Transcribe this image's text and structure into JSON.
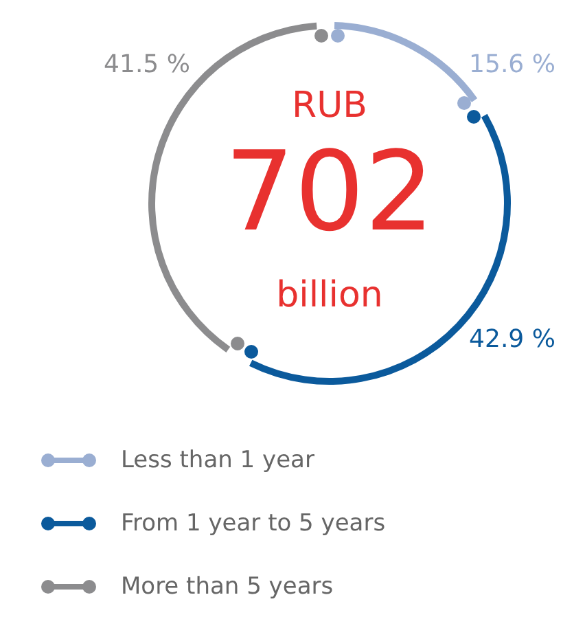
{
  "chart_data": {
    "type": "donut",
    "categories": [
      "Less than 1 year",
      "From 1 year to 5 years",
      "More than 5 years"
    ],
    "values": [
      15.6,
      42.9,
      41.5
    ],
    "colors": [
      "#9aaed2",
      "#0b5a9c",
      "#8c8c8e"
    ],
    "value_labels": [
      "15.6 %",
      "42.9 %",
      "41.5 %"
    ],
    "annotations": [
      "RUB",
      "702",
      "billion"
    ],
    "legend": "bottom"
  }
}
